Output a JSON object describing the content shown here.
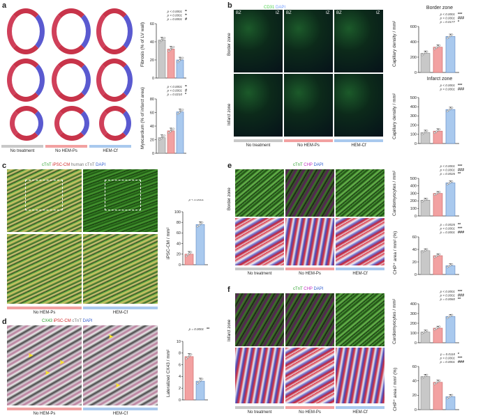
{
  "panels": {
    "a": {
      "label": "a",
      "groups": [
        "No treatment",
        "No HEM-Ps",
        "HEM-Cf"
      ],
      "group_colors": [
        "#c8c8c8",
        "#f2a1a1",
        "#a9c9ee"
      ],
      "chart1": {
        "ylabel": "Fibrosis (% of LV wall)",
        "ticks": [
          "0",
          "20",
          "40",
          "60"
        ],
        "stats": [
          "p < 0.0001",
          "p < 0.0001",
          "p = 0.0001"
        ],
        "stars": [
          "***",
          "***",
          "###"
        ]
      },
      "chart2": {
        "ylabel": "Myocardium (% of infarct area)",
        "ticks": [
          "0",
          "20",
          "40",
          "60",
          "80"
        ],
        "stats": [
          "p < 0.0001",
          "p < 0.0001",
          "p = 0.0210"
        ],
        "stars": [
          "***",
          "###",
          "*"
        ]
      }
    },
    "b": {
      "label": "b",
      "title_cd31": "CD31",
      "title_dapi": "DAPI",
      "bz": "BZ",
      "iz": "IZ",
      "row_labels": [
        "Border zone",
        "Infarct zone"
      ],
      "groups": [
        "No treatment",
        "No HEM-Ps",
        "HEM-Cf"
      ],
      "chart1": {
        "title": "Border zone",
        "ylabel": "Capillary density / mm²",
        "ticks": [
          "0",
          "200",
          "400",
          "600"
        ],
        "stats": [
          "p < 0.0001",
          "p < 0.0001",
          "p = 0.0177"
        ],
        "stars": [
          "***",
          "###",
          "*"
        ]
      },
      "chart2": {
        "title": "Infarct  zone",
        "ylabel": "Capillary density / mm²",
        "ticks": [
          "0",
          "100",
          "200",
          "300",
          "400",
          "500"
        ],
        "stats": [
          "p < 0.0001",
          "p < 0.0001"
        ],
        "stars": [
          "***",
          "###"
        ]
      }
    },
    "c": {
      "label": "c",
      "title_ctnt": "cTnT",
      "title_ipsc": "iPSC-CM",
      "title_human": "human cTnT",
      "title_dapi": "DAPI",
      "groups": [
        "No HEM-Ps",
        "HEM-Cf"
      ],
      "chart": {
        "ylabel": "iPSC-CM / mm²",
        "ticks": [
          "0",
          "20",
          "40",
          "60",
          "80",
          "100"
        ],
        "stat": "p < 0.0001",
        "stars": "***"
      }
    },
    "d": {
      "label": "d",
      "title_cx43": "CX43",
      "title_ipsc": "iPSC-CM",
      "title_ctnt": "cTnT",
      "title_dapi": "DAPI",
      "groups": [
        "No HEM-Ps",
        "HEM-Cf"
      ],
      "chart": {
        "ylabel": "Lateralized CX43 / mm²",
        "ticks": [
          "0",
          "2",
          "4",
          "6",
          "8",
          "10"
        ],
        "stat": "p = 0.0001",
        "stars": "***"
      }
    },
    "e": {
      "label": "e",
      "title_ctnt": "cTnT",
      "title_chp": "CHP",
      "title_dapi": "DAPI",
      "side": "Border zone",
      "groups": [
        "No treatment",
        "No HEM-Ps",
        "HEM-Cf"
      ],
      "chart1": {
        "ylabel": "Cardiomyocytes / mm²",
        "ticks": [
          "0",
          "100",
          "200",
          "300",
          "400",
          "500"
        ],
        "stats": [
          "p < 0.0001",
          "p < 0.0001",
          "p = 0.0026"
        ],
        "stars": [
          "***",
          "###",
          "**"
        ]
      },
      "chart2": {
        "ylabel": "CHP⁺ area / mm² (%)",
        "ticks": [
          "0",
          "20",
          "40",
          "60"
        ],
        "stats": [
          "p = 0.0026",
          "p < 0.0001",
          "p = 0.0001"
        ],
        "stars": [
          "**",
          "***",
          "###"
        ]
      }
    },
    "f": {
      "label": "f",
      "title_ctnt": "cTnT",
      "title_chp": "CHP",
      "title_dapi": "DAPI",
      "side": "Infarct  zone",
      "groups": [
        "No treatment",
        "No HEM-Ps",
        "HEM-Cf"
      ],
      "chart1": {
        "ylabel": "Cardiomyocytes / mm²",
        "ticks": [
          "0",
          "100",
          "200",
          "300",
          "400"
        ],
        "stats": [
          "p < 0.0001",
          "p < 0.0001",
          "p = 0.0060"
        ],
        "stars": [
          "***",
          "###",
          "**"
        ]
      },
      "chart2": {
        "ylabel": "CHP⁺ area / mm² (%)",
        "ticks": [
          "0",
          "20",
          "40",
          "60"
        ],
        "stats": [
          "p = 0.0118",
          "p < 0.0001",
          "p = 0.0001"
        ],
        "stars": [
          "*",
          "***",
          "###"
        ]
      }
    }
  },
  "chart_data": [
    {
      "type": "bar",
      "panel": "a",
      "categories": [
        "No treatment",
        "No HEM-Ps",
        "HEM-Cf"
      ],
      "values": [
        42,
        32,
        20
      ],
      "ylabel": "Fibrosis (% of LV wall)",
      "ylim": [
        0,
        60
      ]
    },
    {
      "type": "bar",
      "panel": "a",
      "categories": [
        "No treatment",
        "No HEM-Ps",
        "HEM-Cf"
      ],
      "values": [
        23,
        33,
        61
      ],
      "ylabel": "Myocardium (% of infarct area)",
      "ylim": [
        0,
        80
      ]
    },
    {
      "type": "bar",
      "panel": "b",
      "title": "Border zone",
      "categories": [
        "No treatment",
        "No HEM-Ps",
        "HEM-Cf"
      ],
      "values": [
        250,
        330,
        470
      ],
      "ylabel": "Capillary density / mm²",
      "ylim": [
        0,
        600
      ]
    },
    {
      "type": "bar",
      "panel": "b",
      "title": "Infarct  zone",
      "categories": [
        "No treatment",
        "No HEM-Ps",
        "HEM-Cf"
      ],
      "values": [
        120,
        135,
        370
      ],
      "ylabel": "Capillary density / mm²",
      "ylim": [
        0,
        500
      ]
    },
    {
      "type": "bar",
      "panel": "c",
      "categories": [
        "No HEM-Ps",
        "HEM-Cf"
      ],
      "values": [
        20,
        76
      ],
      "ylabel": "iPSC-CM / mm²",
      "ylim": [
        0,
        100
      ]
    },
    {
      "type": "bar",
      "panel": "d",
      "categories": [
        "No HEM-Ps",
        "HEM-Cf"
      ],
      "values": [
        7.4,
        3.2
      ],
      "ylabel": "Lateralized CX43 / mm²",
      "ylim": [
        0,
        10
      ]
    },
    {
      "type": "bar",
      "panel": "e",
      "categories": [
        "No treatment",
        "No HEM-Ps",
        "HEM-Cf"
      ],
      "values": [
        210,
        300,
        440
      ],
      "ylabel": "Cardiomyocytes / mm²",
      "ylim": [
        0,
        500
      ]
    },
    {
      "type": "bar",
      "panel": "e",
      "categories": [
        "No treatment",
        "No HEM-Ps",
        "HEM-Cf"
      ],
      "values": [
        38,
        30,
        14
      ],
      "ylabel": "CHP⁺ area / mm² (%)",
      "ylim": [
        0,
        60
      ]
    },
    {
      "type": "bar",
      "panel": "f",
      "categories": [
        "No treatment",
        "No HEM-Ps",
        "HEM-Cf"
      ],
      "values": [
        110,
        150,
        270
      ],
      "ylabel": "Cardiomyocytes / mm²",
      "ylim": [
        0,
        400
      ]
    },
    {
      "type": "bar",
      "panel": "f",
      "categories": [
        "No treatment",
        "No HEM-Ps",
        "HEM-Cf"
      ],
      "values": [
        46,
        38,
        18
      ],
      "ylabel": "CHP⁺ area / mm² (%)",
      "ylim": [
        0,
        60
      ]
    }
  ]
}
